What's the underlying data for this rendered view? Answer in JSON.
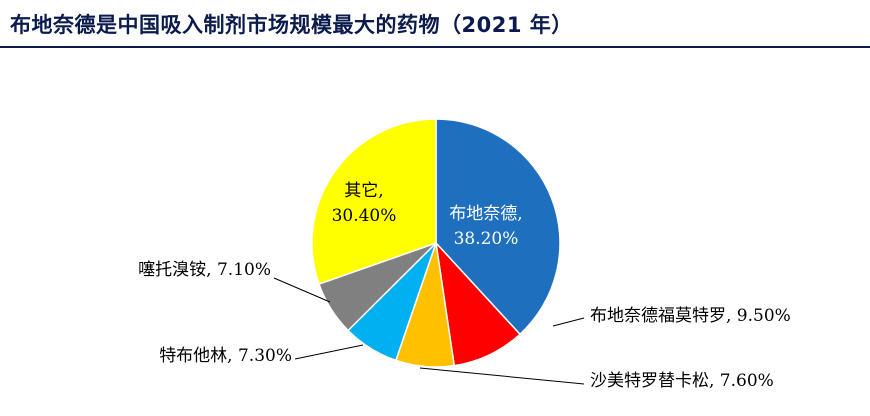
{
  "chart_data": {
    "type": "pie",
    "title": "布地奈德是中国吸入制剂市场规模最大的药物（2021 年）",
    "slices": [
      {
        "name": "布地奈德",
        "value": 38.2,
        "value_text": "38.20%",
        "color": "#1f6fbf",
        "label_inside": true
      },
      {
        "name": "布地奈德福莫特罗",
        "value": 9.5,
        "value_text": "9.50%",
        "color": "#ff0000",
        "label_inside": false
      },
      {
        "name": "沙美特罗替卡松",
        "value": 7.6,
        "value_text": "7.60%",
        "color": "#ffc000",
        "label_inside": false
      },
      {
        "name": "特布他林",
        "value": 7.3,
        "value_text": "7.30%",
        "color": "#00b0f0",
        "label_inside": false
      },
      {
        "name": "噻托溴铵",
        "value": 7.1,
        "value_text": "7.10%",
        "color": "#808080",
        "label_inside": false
      },
      {
        "name": "其它",
        "value": 30.4,
        "value_text": "30.40%",
        "color": "#ffff00",
        "label_inside": true
      }
    ]
  }
}
